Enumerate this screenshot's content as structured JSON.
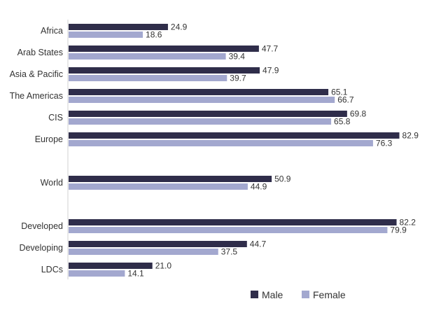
{
  "chart_data": {
    "type": "bar",
    "orientation": "horizontal",
    "categories": [
      "Africa",
      "Arab States",
      "Asia & Pacific",
      "The Americas",
      "CIS",
      "Europe",
      "World",
      "Developed",
      "Developing",
      "LDCs"
    ],
    "series": [
      {
        "name": "Male",
        "color": "#2f2d4a",
        "values": [
          24.9,
          47.7,
          47.9,
          65.1,
          69.8,
          82.9,
          50.9,
          82.2,
          44.7,
          21.0
        ]
      },
      {
        "name": "Female",
        "color": "#a3a8cf",
        "values": [
          18.6,
          39.4,
          39.7,
          66.7,
          65.8,
          76.3,
          44.9,
          79.9,
          37.5,
          14.1
        ]
      }
    ],
    "value_labels": {
      "Male": [
        "24.9",
        "47.7",
        "47.9",
        "65.1",
        "69.8",
        "82.9",
        "50.9",
        "82.2",
        "44.7",
        "21.0"
      ],
      "Female": [
        "18.6",
        "39.4",
        "39.7",
        "66.7",
        "65.8",
        "76.3",
        "44.9",
        "79.9",
        "37.5",
        "14.1"
      ]
    },
    "xlim": [
      0,
      100
    ],
    "grid": false,
    "legend_position": "bottom-right"
  }
}
